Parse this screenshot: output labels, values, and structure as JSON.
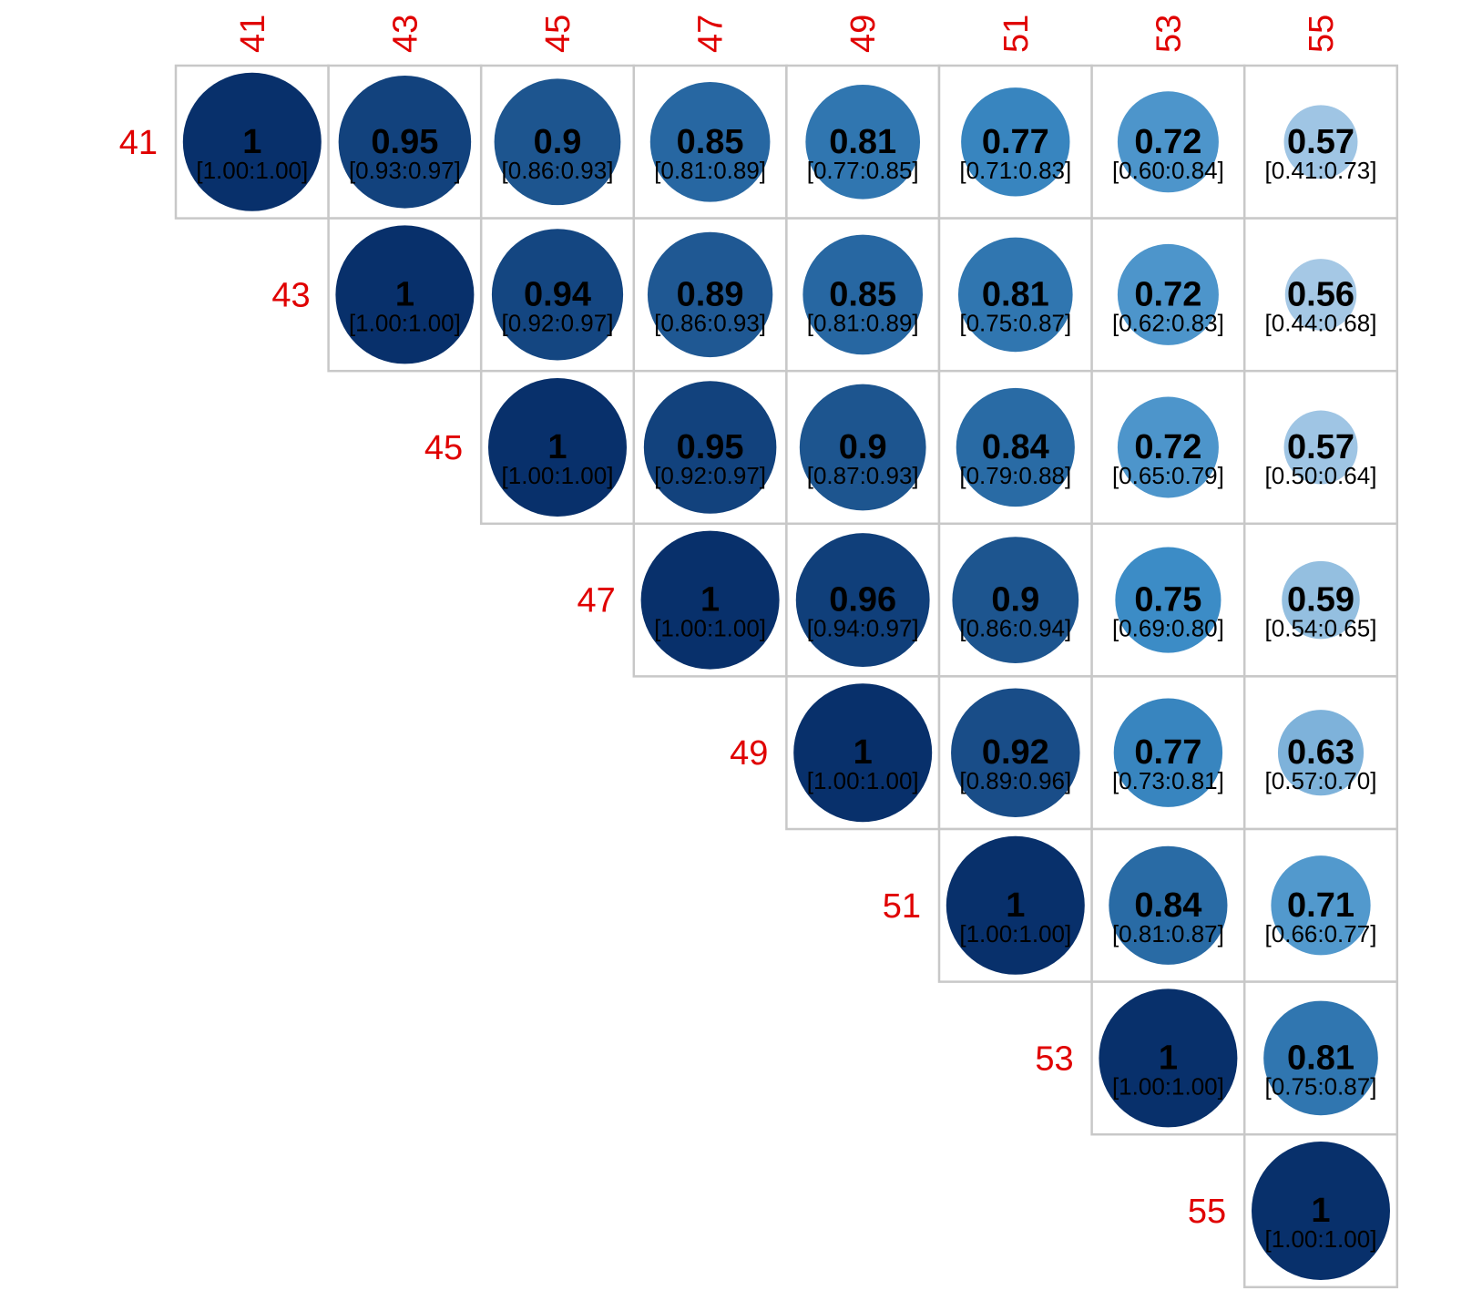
{
  "chart_data": {
    "type": "heatmap",
    "title": "",
    "xlabel": "",
    "ylabel": "",
    "layout": "upper-triangle",
    "glyph": "circle",
    "labels": [
      "41",
      "43",
      "45",
      "47",
      "49",
      "51",
      "53",
      "55"
    ],
    "colors": {
      "tick_labels": "#e00000",
      "grid": "#c8c8c8",
      "low": "#c6dbef",
      "mid": "#3c8cc6",
      "high": "#08306b"
    },
    "cells": [
      {
        "row": "41",
        "col": "41",
        "value": "1",
        "ci": "[1.00:1.00]"
      },
      {
        "row": "41",
        "col": "43",
        "value": "0.95",
        "ci": "[0.93:0.97]"
      },
      {
        "row": "41",
        "col": "45",
        "value": "0.9",
        "ci": "[0.86:0.93]"
      },
      {
        "row": "41",
        "col": "47",
        "value": "0.85",
        "ci": "[0.81:0.89]"
      },
      {
        "row": "41",
        "col": "49",
        "value": "0.81",
        "ci": "[0.77:0.85]"
      },
      {
        "row": "41",
        "col": "51",
        "value": "0.77",
        "ci": "[0.71:0.83]"
      },
      {
        "row": "41",
        "col": "53",
        "value": "0.72",
        "ci": "[0.60:0.84]"
      },
      {
        "row": "41",
        "col": "55",
        "value": "0.57",
        "ci": "[0.41:0.73]"
      },
      {
        "row": "43",
        "col": "43",
        "value": "1",
        "ci": "[1.00:1.00]"
      },
      {
        "row": "43",
        "col": "45",
        "value": "0.94",
        "ci": "[0.92:0.97]"
      },
      {
        "row": "43",
        "col": "47",
        "value": "0.89",
        "ci": "[0.86:0.93]"
      },
      {
        "row": "43",
        "col": "49",
        "value": "0.85",
        "ci": "[0.81:0.89]"
      },
      {
        "row": "43",
        "col": "51",
        "value": "0.81",
        "ci": "[0.75:0.87]"
      },
      {
        "row": "43",
        "col": "53",
        "value": "0.72",
        "ci": "[0.62:0.83]"
      },
      {
        "row": "43",
        "col": "55",
        "value": "0.56",
        "ci": "[0.44:0.68]"
      },
      {
        "row": "45",
        "col": "45",
        "value": "1",
        "ci": "[1.00:1.00]"
      },
      {
        "row": "45",
        "col": "47",
        "value": "0.95",
        "ci": "[0.92:0.97]"
      },
      {
        "row": "45",
        "col": "49",
        "value": "0.9",
        "ci": "[0.87:0.93]"
      },
      {
        "row": "45",
        "col": "51",
        "value": "0.84",
        "ci": "[0.79:0.88]"
      },
      {
        "row": "45",
        "col": "53",
        "value": "0.72",
        "ci": "[0.65:0.79]"
      },
      {
        "row": "45",
        "col": "55",
        "value": "0.57",
        "ci": "[0.50:0.64]"
      },
      {
        "row": "47",
        "col": "47",
        "value": "1",
        "ci": "[1.00:1.00]"
      },
      {
        "row": "47",
        "col": "49",
        "value": "0.96",
        "ci": "[0.94:0.97]"
      },
      {
        "row": "47",
        "col": "51",
        "value": "0.9",
        "ci": "[0.86:0.94]"
      },
      {
        "row": "47",
        "col": "53",
        "value": "0.75",
        "ci": "[0.69:0.80]"
      },
      {
        "row": "47",
        "col": "55",
        "value": "0.59",
        "ci": "[0.54:0.65]"
      },
      {
        "row": "49",
        "col": "49",
        "value": "1",
        "ci": "[1.00:1.00]"
      },
      {
        "row": "49",
        "col": "51",
        "value": "0.92",
        "ci": "[0.89:0.96]"
      },
      {
        "row": "49",
        "col": "53",
        "value": "0.77",
        "ci": "[0.73:0.81]"
      },
      {
        "row": "49",
        "col": "55",
        "value": "0.63",
        "ci": "[0.57:0.70]"
      },
      {
        "row": "51",
        "col": "51",
        "value": "1",
        "ci": "[1.00:1.00]"
      },
      {
        "row": "51",
        "col": "53",
        "value": "0.84",
        "ci": "[0.81:0.87]"
      },
      {
        "row": "51",
        "col": "55",
        "value": "0.71",
        "ci": "[0.66:0.77]"
      },
      {
        "row": "53",
        "col": "53",
        "value": "1",
        "ci": "[1.00:1.00]"
      },
      {
        "row": "53",
        "col": "55",
        "value": "0.81",
        "ci": "[0.75:0.87]"
      },
      {
        "row": "55",
        "col": "55",
        "value": "1",
        "ci": "[1.00:1.00]"
      }
    ]
  }
}
